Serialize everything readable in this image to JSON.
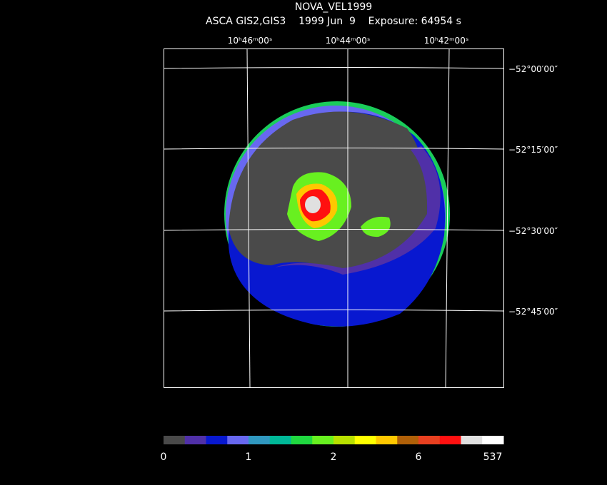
{
  "header": {
    "title": "NOVA_VEL1999",
    "subtitle": "ASCA GIS2,GIS3    1999 Jun  9    Exposure: 64954 s"
  },
  "image": {
    "ra_labels": [
      "10ʰ46ᵐ00ˢ",
      "10ʰ44ᵐ00ˢ",
      "10ʰ42ᵐ00ˢ"
    ],
    "dec_labels": [
      "−52°00′00″",
      "−52°15′00″",
      "−52°30′00″",
      "−52°45′00″"
    ]
  },
  "colorbar": {
    "colors": [
      "#4a4a4a",
      "#5030a8",
      "#0818d0",
      "#6868f0",
      "#3098c0",
      "#00b898",
      "#20d840",
      "#68f020",
      "#b8e000",
      "#ffff00",
      "#ffc800",
      "#b06008",
      "#e84020",
      "#ff1010",
      "#e0e0e0",
      "#ffffff"
    ],
    "labels": [
      "0",
      "1",
      "2",
      "6",
      "537"
    ]
  }
}
